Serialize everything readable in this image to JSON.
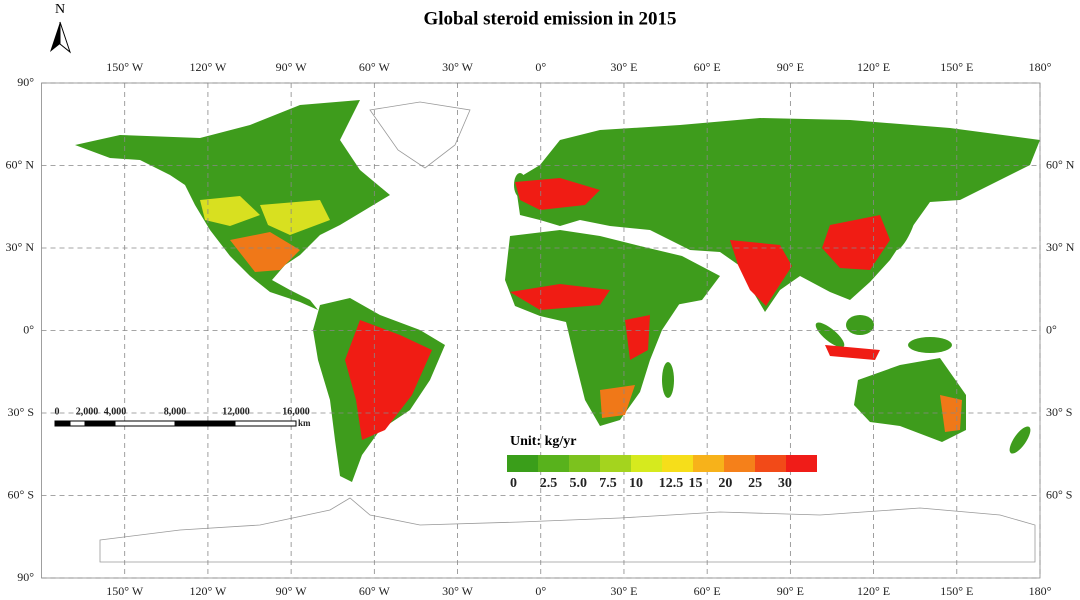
{
  "title": "Global steroid emission in 2015",
  "north_label": "N",
  "longitude_labels": [
    {
      "value": -150,
      "label": "150° W"
    },
    {
      "value": -120,
      "label": "120° W"
    },
    {
      "value": -90,
      "label": "90° W"
    },
    {
      "value": -60,
      "label": "60° W"
    },
    {
      "value": -30,
      "label": "30° W"
    },
    {
      "value": 0,
      "label": "0°"
    },
    {
      "value": 30,
      "label": "30° E"
    },
    {
      "value": 60,
      "label": "60° E"
    },
    {
      "value": 90,
      "label": "90° E"
    },
    {
      "value": 120,
      "label": "120° E"
    },
    {
      "value": 150,
      "label": "150° E"
    },
    {
      "value": 180,
      "label": "180°"
    }
  ],
  "latitude_labels": [
    {
      "value": 90,
      "label": "90°"
    },
    {
      "value": 60,
      "label": "60° N"
    },
    {
      "value": 30,
      "label": "30° N"
    },
    {
      "value": 0,
      "label": "0°"
    },
    {
      "value": -30,
      "label": "30° S"
    },
    {
      "value": -60,
      "label": "60° S"
    },
    {
      "value": -90,
      "label": "90°"
    }
  ],
  "legend": {
    "title": "Unit: kg/yr",
    "colors": [
      "#3a9e1a",
      "#58b21c",
      "#7cc21e",
      "#a4d41e",
      "#d6ea1e",
      "#f6de1a",
      "#f7b21a",
      "#f5801a",
      "#f24a18",
      "#f01c18"
    ],
    "labels": [
      "0",
      "2.5",
      "5.0",
      "7.5",
      "10",
      "12.5",
      "15",
      "20",
      "25",
      "30"
    ]
  },
  "scale_bar": {
    "labels": [
      "0",
      "2,000",
      "4,000",
      "8,000",
      "12,000",
      "16,000"
    ],
    "unit": "km"
  }
}
